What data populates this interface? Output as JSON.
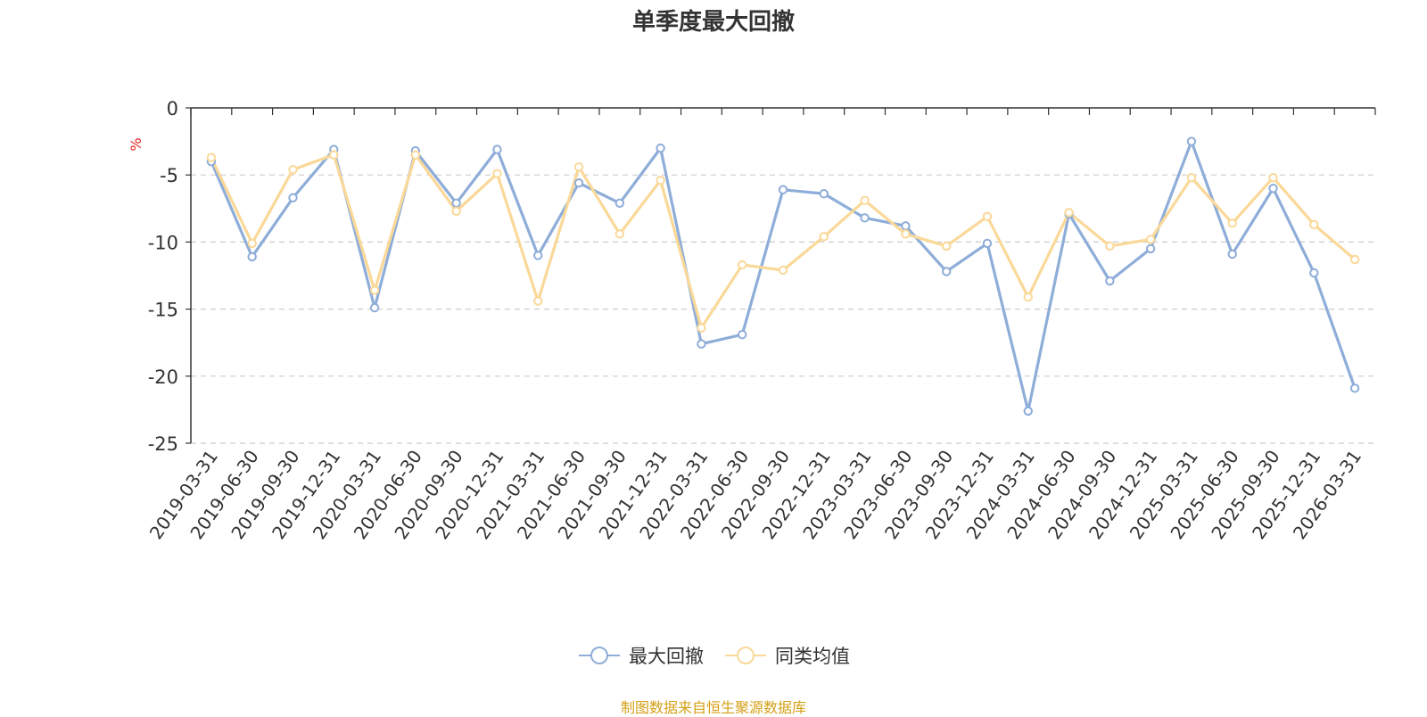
{
  "chart_data": {
    "type": "line",
    "title": "单季度最大回撤",
    "ylabel": "%",
    "ylim": [
      -25,
      0
    ],
    "yticks": [
      0,
      -5,
      -10,
      -15,
      -20,
      -25
    ],
    "grid": true,
    "legend_position": "bottom",
    "x": [
      "2019-03-31",
      "2019-06-30",
      "2019-09-30",
      "2019-12-31",
      "2020-03-31",
      "2020-06-30",
      "2020-09-30",
      "2020-12-31",
      "2021-03-31",
      "2021-06-30",
      "2021-09-30",
      "2021-12-31",
      "2022-03-31",
      "2022-06-30",
      "2022-09-30",
      "2022-12-31",
      "2023-03-31",
      "2023-06-30",
      "2023-09-30",
      "2023-12-31",
      "2024-03-31",
      "2024-06-30",
      "2024-09-30",
      "2024-12-31",
      "2025-03-31",
      "2025-06-30",
      "2025-09-30",
      "2025-12-31",
      "2026-03-31"
    ],
    "series": [
      {
        "name": "最大回撤",
        "color": "#8eadd8",
        "values": [
          -4.0,
          -11.1,
          -6.7,
          -3.1,
          -14.9,
          -3.2,
          -7.1,
          -3.1,
          -11.0,
          -5.6,
          -7.1,
          -3.0,
          -17.6,
          -16.9,
          -6.1,
          -6.4,
          -8.2,
          -8.8,
          -12.2,
          -10.1,
          -22.6,
          -7.9,
          -12.9,
          -10.5,
          -2.5,
          -10.9,
          -6.0,
          -12.3,
          -20.9
        ]
      },
      {
        "name": "同类均值",
        "color": "#fad898",
        "values": [
          -3.7,
          -10.1,
          -4.6,
          -3.5,
          -13.6,
          -3.5,
          -7.7,
          -4.9,
          -14.4,
          -4.4,
          -9.4,
          -5.4,
          -16.4,
          -11.7,
          -12.1,
          -9.6,
          -6.9,
          -9.4,
          -10.3,
          -8.1,
          -14.1,
          -7.8,
          -10.3,
          -9.8,
          -5.2,
          -8.6,
          -5.2,
          -8.7,
          -11.3
        ]
      }
    ]
  },
  "source_note": "制图数据来自恒生聚源数据库"
}
